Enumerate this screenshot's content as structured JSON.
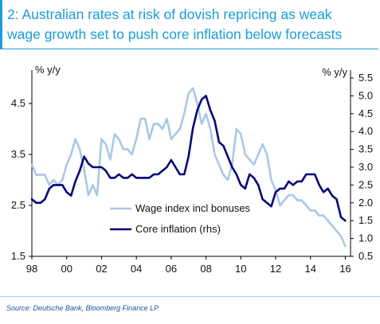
{
  "title": {
    "line1": "2: Australian rates at risk of dovish repricing as weak",
    "line2": "wage growth set to push core inflation below forecasts"
  },
  "source": "Source:  Deutsche Bank, Bloomberg Finance LP",
  "colors": {
    "title": "#1b9dd9",
    "wage": "#a9c8e8",
    "core": "#06067a"
  },
  "chart_data": {
    "type": "line",
    "xlabel": "",
    "ylabel_left": "% y/y",
    "ylabel_right": "% y/y",
    "x_ticks": [
      "98",
      "00",
      "02",
      "04",
      "06",
      "08",
      "10",
      "12",
      "14",
      "16"
    ],
    "xlim": [
      1998,
      2016.3
    ],
    "ylim_left": [
      1.5,
      5.0
    ],
    "ylim_right": [
      0.5,
      5.5
    ],
    "y_ticks_left": [
      "4.5",
      "3.5",
      "2.5",
      "1.5"
    ],
    "y_ticks_right": [
      "5.5",
      "5.0",
      "4.5",
      "4.0",
      "3.5",
      "3.0",
      "2.5",
      "2.0",
      "1.5",
      "1.0",
      "0.5"
    ],
    "legend_position": "lower-middle",
    "grid": false,
    "series": [
      {
        "name": "Wage index incl bonuses",
        "axis": "left",
        "x": [
          1998.0,
          1998.25,
          1998.5,
          1998.75,
          1999.0,
          1999.25,
          1999.5,
          1999.75,
          2000.0,
          2000.25,
          2000.5,
          2000.75,
          2001.0,
          2001.25,
          2001.5,
          2001.75,
          2002.0,
          2002.25,
          2002.5,
          2002.75,
          2003.0,
          2003.25,
          2003.5,
          2003.75,
          2004.0,
          2004.25,
          2004.5,
          2004.75,
          2005.0,
          2005.25,
          2005.5,
          2005.75,
          2006.0,
          2006.25,
          2006.5,
          2006.75,
          2007.0,
          2007.25,
          2007.5,
          2007.75,
          2008.0,
          2008.25,
          2008.5,
          2008.75,
          2009.0,
          2009.25,
          2009.5,
          2009.75,
          2010.0,
          2010.25,
          2010.5,
          2010.75,
          2011.0,
          2011.25,
          2011.5,
          2011.75,
          2012.0,
          2012.25,
          2012.5,
          2012.75,
          2013.0,
          2013.25,
          2013.5,
          2013.75,
          2014.0,
          2014.25,
          2014.5,
          2014.75,
          2015.0,
          2015.25,
          2015.5,
          2015.75,
          2016.0
        ],
        "y": [
          3.3,
          3.1,
          3.1,
          3.1,
          2.9,
          3.0,
          2.9,
          3.0,
          3.3,
          3.5,
          3.8,
          3.6,
          3.2,
          2.7,
          2.9,
          2.7,
          3.8,
          3.7,
          3.4,
          3.9,
          3.8,
          3.6,
          3.6,
          3.5,
          3.8,
          4.2,
          4.2,
          3.8,
          4.1,
          4.1,
          4.0,
          4.2,
          3.8,
          3.9,
          4.0,
          4.3,
          4.7,
          4.8,
          4.5,
          4.1,
          4.3,
          4.0,
          3.5,
          3.3,
          3.1,
          3.0,
          3.3,
          4.0,
          3.9,
          3.5,
          3.4,
          3.3,
          3.5,
          3.7,
          3.5,
          3.0,
          2.8,
          2.5,
          2.6,
          2.7,
          2.7,
          2.6,
          2.6,
          2.5,
          2.4,
          2.4,
          2.3,
          2.3,
          2.2,
          2.1,
          2.0,
          1.9,
          1.7
        ]
      },
      {
        "name": "Core inflation (rhs)",
        "axis": "right",
        "x": [
          1998.0,
          1998.25,
          1998.5,
          1998.75,
          1999.0,
          1999.25,
          1999.5,
          1999.75,
          2000.0,
          2000.25,
          2000.5,
          2000.75,
          2001.0,
          2001.25,
          2001.5,
          2001.75,
          2002.0,
          2002.25,
          2002.5,
          2002.75,
          2003.0,
          2003.25,
          2003.5,
          2003.75,
          2004.0,
          2004.25,
          2004.5,
          2004.75,
          2005.0,
          2005.25,
          2005.5,
          2005.75,
          2006.0,
          2006.25,
          2006.5,
          2006.75,
          2007.0,
          2007.25,
          2007.5,
          2007.75,
          2008.0,
          2008.25,
          2008.5,
          2008.75,
          2009.0,
          2009.25,
          2009.5,
          2009.75,
          2010.0,
          2010.25,
          2010.5,
          2010.75,
          2011.0,
          2011.25,
          2011.5,
          2011.75,
          2012.0,
          2012.25,
          2012.5,
          2012.75,
          2013.0,
          2013.25,
          2013.5,
          2013.75,
          2014.0,
          2014.25,
          2014.5,
          2014.75,
          2015.0,
          2015.25,
          2015.5,
          2015.75,
          2016.0
        ],
        "y": [
          2.1,
          2.0,
          2.0,
          2.1,
          2.4,
          2.5,
          2.5,
          2.5,
          2.3,
          2.2,
          2.6,
          2.9,
          3.3,
          3.1,
          3.0,
          3.0,
          3.0,
          2.9,
          2.7,
          2.7,
          2.8,
          2.7,
          2.7,
          2.8,
          2.7,
          2.7,
          2.7,
          2.7,
          2.8,
          2.8,
          2.9,
          3.0,
          3.2,
          3.0,
          2.8,
          2.8,
          3.3,
          4.1,
          4.6,
          4.9,
          5.0,
          4.6,
          4.3,
          3.7,
          3.6,
          3.3,
          3.0,
          2.8,
          2.5,
          2.4,
          2.8,
          2.7,
          2.5,
          2.1,
          2.0,
          1.9,
          2.3,
          2.4,
          2.4,
          2.6,
          2.5,
          2.6,
          2.6,
          2.8,
          2.8,
          2.8,
          2.5,
          2.3,
          2.4,
          2.2,
          2.1,
          1.6,
          1.5
        ]
      }
    ]
  }
}
